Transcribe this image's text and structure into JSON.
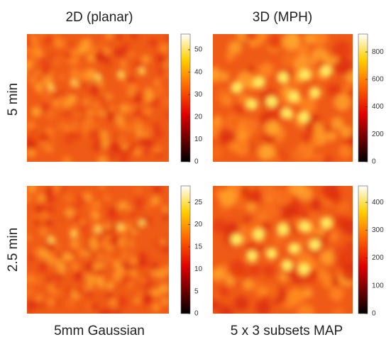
{
  "column_titles": [
    "2D (planar)",
    "3D (MPH)"
  ],
  "row_labels": [
    "5 min",
    "2.5 min"
  ],
  "captions": [
    "5mm Gaussian",
    "5 x 3 subsets MAP"
  ],
  "panels": [
    {
      "colorbar_lim": [
        0,
        57
      ],
      "colorbar_ticks": [
        0,
        10,
        20,
        30,
        40,
        50
      ]
    },
    {
      "colorbar_lim": [
        0,
        930
      ],
      "colorbar_ticks": [
        0,
        200,
        400,
        600,
        800
      ]
    },
    {
      "colorbar_lim": [
        0,
        28.7
      ],
      "colorbar_ticks": [
        0,
        5,
        10,
        15,
        20,
        25
      ]
    },
    {
      "colorbar_lim": [
        0,
        459
      ],
      "colorbar_ticks": [
        0,
        100,
        200,
        300,
        400
      ]
    }
  ]
}
